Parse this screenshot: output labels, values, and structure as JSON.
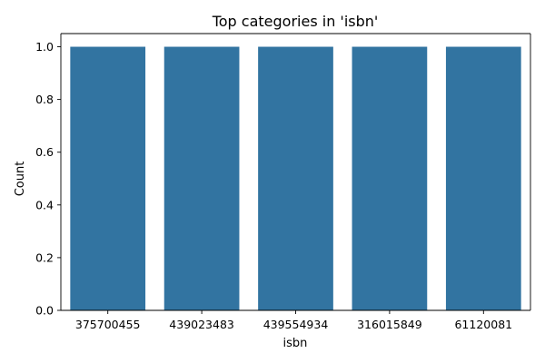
{
  "chart_data": {
    "type": "bar",
    "title": "Top categories in 'isbn'",
    "xlabel": "isbn",
    "ylabel": "Count",
    "categories": [
      "375700455",
      "439023483",
      "439554934",
      "316015849",
      "61120081"
    ],
    "values": [
      1,
      1,
      1,
      1,
      1
    ],
    "ylim": [
      0,
      1.05
    ],
    "yticks": [
      0.0,
      0.2,
      0.4,
      0.6,
      0.8,
      1.0
    ],
    "ytick_labels": [
      "0.0",
      "0.2",
      "0.4",
      "0.6",
      "0.8",
      "1.0"
    ],
    "grid": false,
    "legend": "none",
    "bar_color": "#3274a1",
    "axis_color": "#000000"
  }
}
